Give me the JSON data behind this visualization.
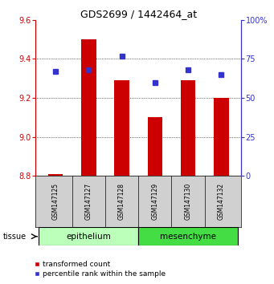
{
  "title": "GDS2699 / 1442464_at",
  "samples": [
    "GSM147125",
    "GSM147127",
    "GSM147128",
    "GSM147129",
    "GSM147130",
    "GSM147132"
  ],
  "transformed_counts": [
    8.81,
    9.5,
    9.29,
    9.1,
    9.29,
    9.2
  ],
  "percentile_ranks": [
    67,
    68,
    77,
    60,
    68,
    65
  ],
  "bar_bottom": 8.8,
  "ylim_left": [
    8.8,
    9.6
  ],
  "ylim_right": [
    0,
    100
  ],
  "yticks_left": [
    8.8,
    9.0,
    9.2,
    9.4,
    9.6
  ],
  "yticks_right": [
    0,
    25,
    50,
    75,
    100
  ],
  "groups": [
    {
      "label": "epithelium",
      "samples": [
        0,
        1,
        2
      ]
    },
    {
      "label": "mesenchyme",
      "samples": [
        3,
        4,
        5
      ]
    }
  ],
  "bar_color": "#CC0000",
  "dot_color": "#3333CC",
  "axis_left_color": "#CC0000",
  "axis_right_color": "#3333CC",
  "tissue_label": "tissue",
  "legend_bar_label": "transformed count",
  "legend_dot_label": "percentile rank within the sample",
  "epithelium_color": "#BBFFBB",
  "mesenchyme_color": "#44DD44",
  "sample_bg_color": "#D0D0D0"
}
